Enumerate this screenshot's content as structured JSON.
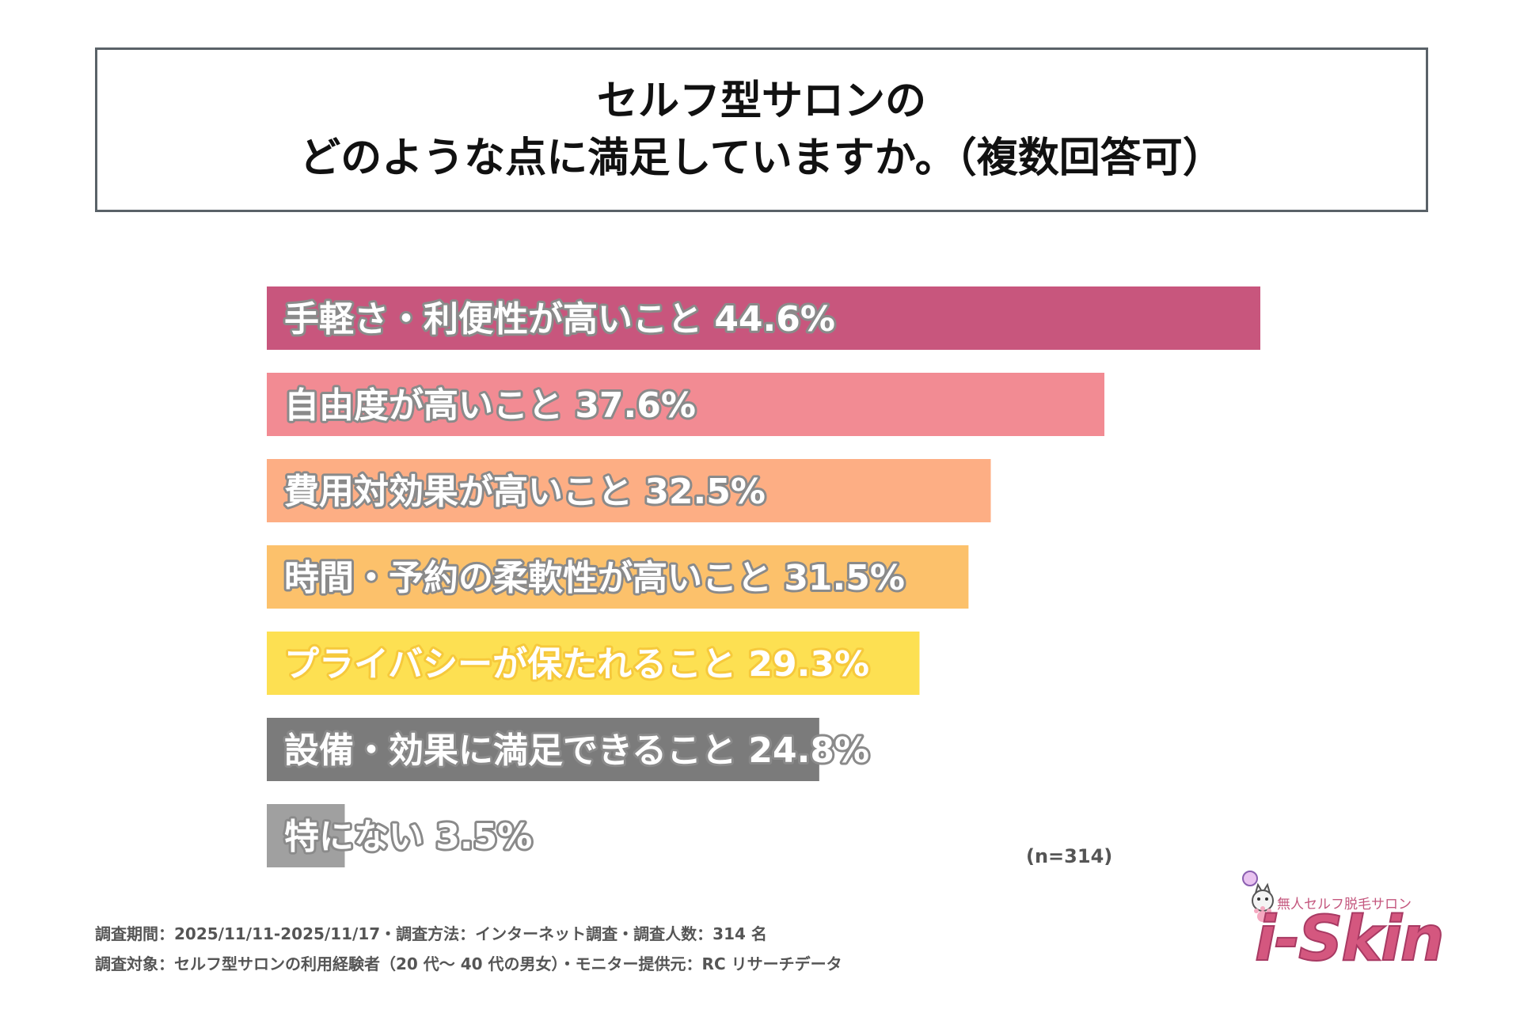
{
  "title": {
    "line1": "セルフ型サロンの",
    "line2": "どのような点に満足していますか。（複数回答可）"
  },
  "chart_data": {
    "type": "bar",
    "orientation": "horizontal",
    "categories": [
      "手軽さ・利便性が高いこと",
      "自由度が高いこと",
      "費用対効果が高いこと",
      "時間・予約の柔軟性が高いこと",
      "プライバシーが保たれること",
      "設備・効果に満足できること",
      "特にない"
    ],
    "values": [
      44.6,
      37.6,
      32.5,
      31.5,
      29.3,
      24.8,
      3.5
    ],
    "value_labels": [
      "44.6%",
      "37.6%",
      "32.5%",
      "31.5%",
      "29.3%",
      "24.8%",
      "3.5%"
    ],
    "colors": [
      "#c8567d",
      "#f28b93",
      "#fdae84",
      "#fcc16b",
      "#fde052",
      "#7b7b7b",
      "#a0a0a0"
    ],
    "title": "",
    "xlabel": "",
    "ylabel": "",
    "xlim": [
      0,
      44.6
    ],
    "grid": false,
    "legend": "none",
    "annotation": "(n=314)"
  },
  "footnotes": {
    "line1": "調査期間：2025/11/11-2025/11/17・調査方法：インターネット調査・調査人数：314 名",
    "line2": "調査対象：セルフ型サロンの利用経験者（20 代〜 40 代の男女）・モニター提供元：RC リサーチデータ"
  },
  "logo": {
    "tagline": "無人セルフ脱毛サロン",
    "wordmark": "i-Skin",
    "icon": "cat-mascot-icon"
  }
}
